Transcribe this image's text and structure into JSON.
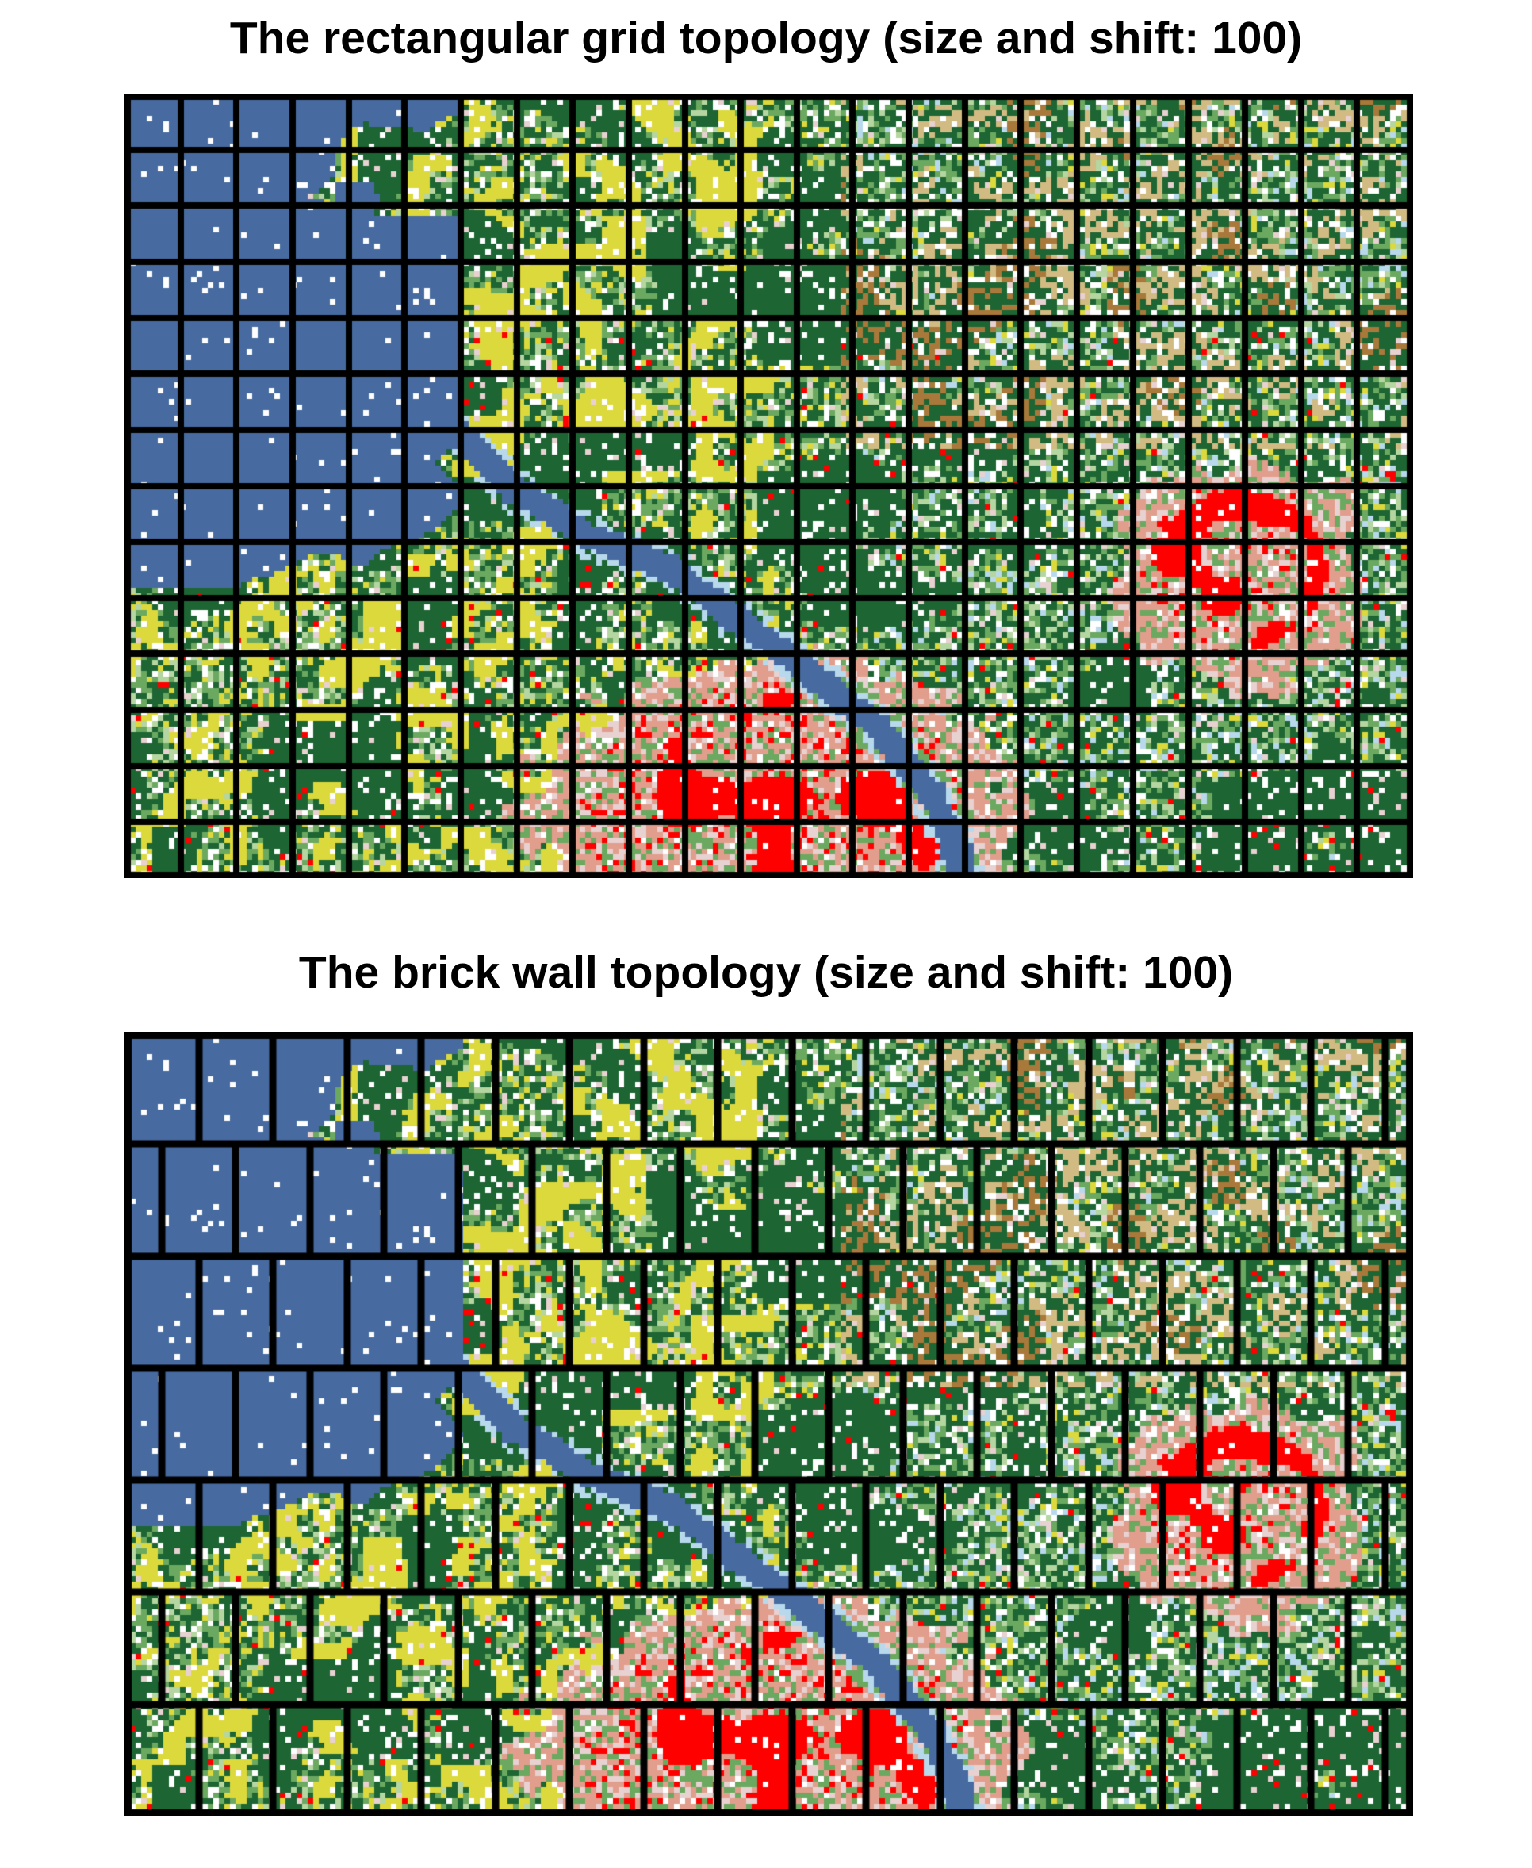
{
  "panels": [
    {
      "title": "The rectangular grid topology (size and shift: 100)",
      "topology": "rectangular grid",
      "size": 100,
      "shift": 100
    },
    {
      "title": "The brick wall topology (size and shift: 100)",
      "topology": "brick wall",
      "size": 100,
      "shift": 100
    }
  ],
  "land_cover_colors": {
    "water": "#476ba1",
    "deciduous_forest": "#1d6533",
    "mixed_forest": "#6ba860",
    "light_vegetation": "#b5d6a0",
    "pasture_hay": "#dcd93d",
    "shrub_grass": "#d1bb82",
    "cultivated_crops": "#a8793a",
    "developed_open": "#e8d1d1",
    "developed_low": "#e29e8c",
    "developed_high": "#ff0000",
    "wetlands": "#b8d9eb",
    "barren": "#ffffff"
  }
}
